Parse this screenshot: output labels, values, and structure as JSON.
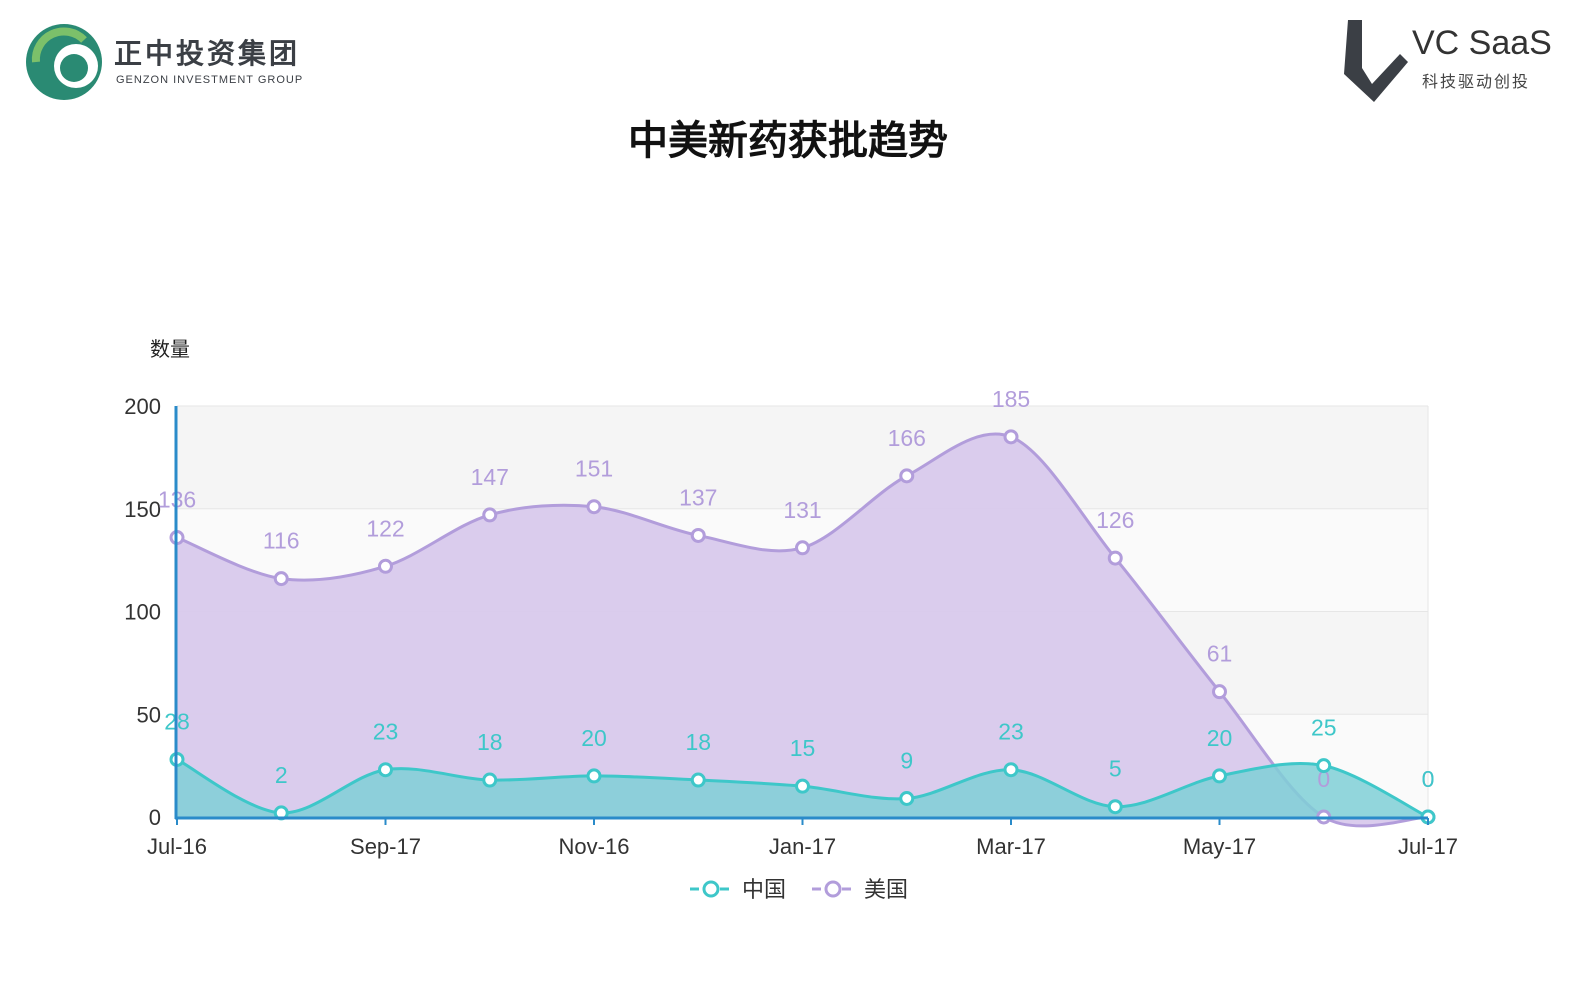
{
  "header": {
    "left_logo_cn": "正中投资集团",
    "left_logo_en": "GENZON INVESTMENT GROUP",
    "right_logo_brand": "VC SaaS",
    "right_logo_sub": "科技驱动创投",
    "title": "中美新药获批趋势"
  },
  "colors": {
    "china": "#3ec7c9",
    "usa": "#b29ddb",
    "usa_fill": "#d8c9ec",
    "china_fill": "#7fcfd6",
    "axis": "#2a8bc9",
    "logo_green": "#2a8a73",
    "logo_dark": "#3b3f45"
  },
  "chart_data": {
    "type": "area",
    "title": "中美新药获批趋势",
    "ylabel": "数量",
    "xlabel": "",
    "ylim": [
      0,
      200
    ],
    "yticks": [
      0,
      50,
      100,
      150,
      200
    ],
    "x": [
      "Jul-16",
      "",
      "Sep-17",
      "",
      "Nov-16",
      "",
      "Jan-17",
      "",
      "Mar-17",
      "",
      "May-17",
      "",
      "Jul-17"
    ],
    "xtick_labels": [
      "Jul-16",
      "Sep-17",
      "Nov-16",
      "Jan-17",
      "Mar-17",
      "May-17",
      "Jul-17"
    ],
    "series": [
      {
        "name": "中国",
        "values": [
          28,
          2,
          23,
          18,
          20,
          18,
          15,
          9,
          23,
          5,
          20,
          25,
          0
        ]
      },
      {
        "name": "美国",
        "values": [
          136,
          116,
          122,
          147,
          151,
          137,
          131,
          166,
          185,
          126,
          61,
          0,
          0
        ]
      }
    ],
    "legend": "bottom-center",
    "grid": true,
    "data_labels": true
  }
}
